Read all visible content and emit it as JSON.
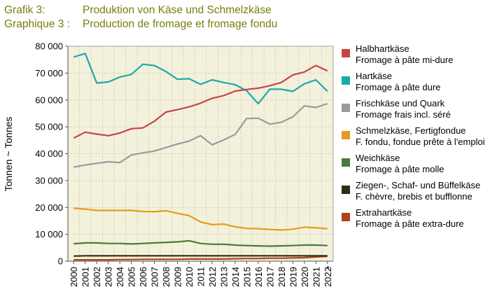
{
  "title": {
    "de_label": "Grafik 3:",
    "de_text": "Produktion von Käse und Schmelzkäse",
    "fr_label": "Graphique 3 :",
    "fr_text": "Production de fromage et fromage fondu"
  },
  "colors": {
    "title": "#7a7d0f",
    "plot_bg": "#f3f1dc",
    "grid": "#c8c6a4"
  },
  "chart_data": {
    "type": "line",
    "ylabel": "Tonnen  ~  Tonnes",
    "ylim": [
      0,
      80000
    ],
    "yticks": [
      0,
      10000,
      20000,
      30000,
      40000,
      50000,
      60000,
      70000,
      80000
    ],
    "ytick_labels": [
      "0",
      "10 000",
      "20 000",
      "30 000",
      "40 000",
      "50 000",
      "60 000",
      "70 000",
      "80 000"
    ],
    "x": [
      "2000",
      "2001",
      "2002",
      "2003",
      "2004",
      "2005",
      "2006",
      "2007",
      "2008",
      "2009",
      "2010",
      "2011",
      "2012",
      "2013",
      "2014",
      "2015",
      "2016",
      "2017",
      "2018",
      "2019",
      "2020",
      "2021",
      "2022"
    ],
    "x_note": "*",
    "grid": true,
    "legend_position": "right",
    "series": [
      {
        "name_de": "Halbhartkäse",
        "name_fr": "Fromage à pâte mi-dure",
        "color": "#c64644",
        "values": [
          45800,
          48000,
          47300,
          46700,
          47700,
          49300,
          49600,
          52100,
          55500,
          56400,
          57400,
          58800,
          60600,
          61600,
          63300,
          63900,
          64400,
          65300,
          66500,
          69300,
          70400,
          72800,
          70800
        ]
      },
      {
        "name_de": "Hartkäse",
        "name_fr": "Fromage à pâte dure",
        "color": "#1aaba5",
        "values": [
          76000,
          77300,
          66300,
          66700,
          68500,
          69500,
          73300,
          72800,
          70600,
          67700,
          67900,
          65800,
          67500,
          66500,
          65700,
          63400,
          58600,
          64000,
          64000,
          63200,
          66000,
          67500,
          63200
        ]
      },
      {
        "name_de": "Frischkäse und Quark",
        "name_fr": "Fromage frais incl. séré",
        "color": "#9b9b9b",
        "values": [
          35000,
          35800,
          36400,
          37000,
          36700,
          39500,
          40300,
          41000,
          42300,
          43600,
          44700,
          46700,
          43300,
          45100,
          47200,
          53100,
          53200,
          51000,
          51700,
          53700,
          57800,
          57200,
          58600
        ]
      },
      {
        "name_de": "Schmelzkäse, Fertigfondue",
        "name_fr": "F. fondu, fondue prête à l'emploi",
        "color": "#e89a1e",
        "values": [
          19700,
          19400,
          18900,
          18900,
          18900,
          18900,
          18500,
          18400,
          18800,
          17800,
          17000,
          14600,
          13600,
          13800,
          12800,
          12200,
          12100,
          11800,
          11600,
          11900,
          12700,
          12400,
          12100
        ]
      },
      {
        "name_de": "Weichkäse",
        "name_fr": "Fromage à pâte molle",
        "color": "#4b7a3a",
        "values": [
          6500,
          6800,
          6800,
          6600,
          6600,
          6400,
          6600,
          6800,
          7000,
          7200,
          7600,
          6600,
          6300,
          6300,
          6000,
          5800,
          5700,
          5600,
          5700,
          5800,
          6000,
          6000,
          5800
        ]
      },
      {
        "name_de": "Ziegen-, Schaf- und Büffelkäse",
        "name_fr": "F. chèvre, brebis et bufflonne",
        "color": "#2b2e12",
        "values": [
          1900,
          2000,
          2000,
          2000,
          2000,
          2000,
          2000,
          2000,
          2000,
          2000,
          2000,
          2000,
          2000,
          2000,
          2000,
          2000,
          2000,
          2000,
          2000,
          2000,
          2000,
          2000,
          2000
        ]
      },
      {
        "name_de": "Extrahartkäse",
        "name_fr": "Fromage à pâte extra-dure",
        "color": "#b0421c",
        "values": [
          500,
          500,
          500,
          500,
          600,
          600,
          700,
          700,
          700,
          700,
          800,
          800,
          800,
          800,
          900,
          1000,
          1000,
          1100,
          1100,
          1200,
          1300,
          1600,
          1800
        ]
      }
    ]
  }
}
